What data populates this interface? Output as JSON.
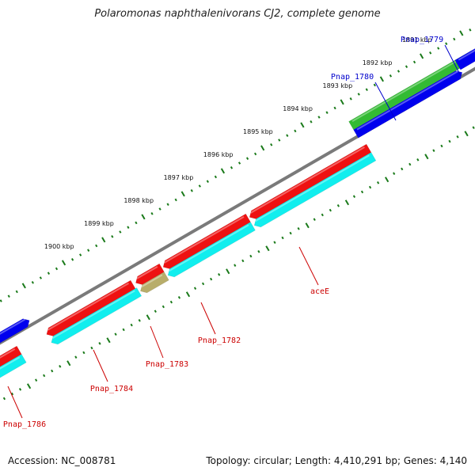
{
  "title": "Polaromonas naphthalenivorans CJ2, complete genome",
  "accession": "Accession: NC_008781",
  "summary": "Topology: circular; Length: 4,410,291 bp; Genes: 4,140",
  "colors": {
    "backbone": "#7a7a7a",
    "ticks": "#1a7a1a",
    "forward_gene_green": "#33bb33",
    "forward_gene_blue": "#0000ee",
    "reverse_gene_red": "#ee1111",
    "reverse_gene_cyan": "#11eeee",
    "overlap": "#b8ad6a",
    "label_forward": "#0000cc",
    "label_reverse": "#cc0000"
  },
  "tick_labels": [
    "1891 kbp",
    "1892 kbp",
    "1893 kbp",
    "1894 kbp",
    "1895 kbp",
    "1896 kbp",
    "1897 kbp",
    "1898 kbp",
    "1899 kbp",
    "1900 kbp"
  ],
  "genes": [
    {
      "label": "Pnap_1779",
      "strand": "forward"
    },
    {
      "label": "Pnap_1780",
      "strand": "forward"
    },
    {
      "label": "aceE",
      "strand": "reverse"
    },
    {
      "label": "Pnap_1782",
      "strand": "reverse"
    },
    {
      "label": "Pnap_1783",
      "strand": "reverse"
    },
    {
      "label": "Pnap_1784",
      "strand": "reverse"
    },
    {
      "label": "Pnap_1786",
      "strand": "reverse"
    }
  ]
}
